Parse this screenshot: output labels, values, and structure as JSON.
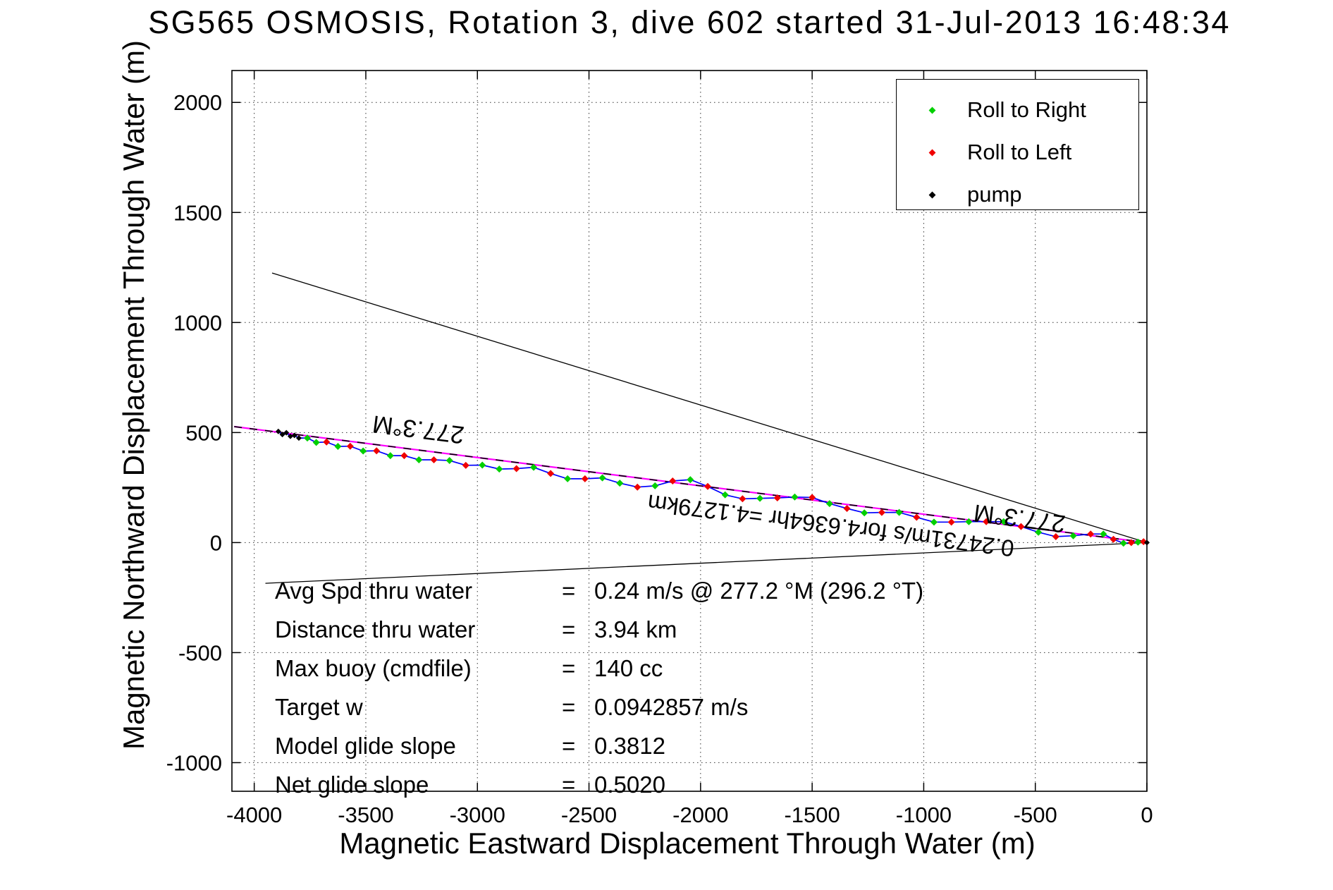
{
  "title": "SG565 OSMOSIS, Rotation 3, dive 602 started 31-Jul-2013 16:48:34",
  "legend": {
    "items": [
      {
        "label": "Roll to Right",
        "marker": "roll-right-marker",
        "color": "#00d000"
      },
      {
        "label": "Roll to Left",
        "marker": "roll-left-marker",
        "color": "#f00000"
      },
      {
        "label": "pump",
        "marker": "pump-marker",
        "color": "#000000"
      }
    ]
  },
  "stats": {
    "eq": "=",
    "rows": [
      {
        "label": "Avg Spd thru water",
        "value": "0.24 m/s @ 277.2 °M (296.2 °T)"
      },
      {
        "label": "Distance thru water",
        "value": "3.94 km"
      },
      {
        "label": "Max buoy (cmdfile)",
        "value": "140 cc"
      },
      {
        "label": "Target w",
        "value": "0.0942857 m/s"
      },
      {
        "label": "Model glide slope",
        "value": "0.3812"
      },
      {
        "label": "Net glide slope",
        "value": "0.5020"
      }
    ]
  },
  "chart_data": {
    "type": "line",
    "title": "SG565 OSMOSIS, Rotation 3, dive 602 started 31-Jul-2013 16:48:34",
    "xlabel": "Magnetic Eastward Displacement Through Water (m)",
    "ylabel": "Magnetic Northward Displacement Through Water (m)",
    "xlim": [
      -4100,
      0
    ],
    "ylim": [
      -1130,
      2145
    ],
    "x_ticks": [
      -4000,
      -3500,
      -3000,
      -2500,
      -2000,
      -1500,
      -1000,
      -500,
      0
    ],
    "y_ticks": [
      -1000,
      -500,
      0,
      500,
      1000,
      1500,
      2000
    ],
    "grid": true,
    "legend_position": "top-right",
    "marker_colors": {
      "g": "#00d000",
      "r": "#f00000",
      "k": "#000000"
    },
    "series": [
      {
        "name": "bearing-cone-upper",
        "color": "#000000",
        "style": "solid",
        "width": 1.3,
        "points": [
          [
            -3920,
            1225
          ],
          [
            0,
            0
          ]
        ]
      },
      {
        "name": "bearing-cone-lower",
        "color": "#000000",
        "style": "solid",
        "width": 1.3,
        "points": [
          [
            -3950,
            -185
          ],
          [
            0,
            0
          ]
        ]
      },
      {
        "name": "average-course-line",
        "color": "#ff00ff",
        "style": "solid",
        "width": 2.2,
        "points": [
          [
            -4090,
            527
          ],
          [
            0,
            0
          ]
        ]
      },
      {
        "name": "desired-course-line",
        "color": "#000000",
        "style": "dashed",
        "width": 1.6,
        "points": [
          [
            -4090,
            527
          ],
          [
            0,
            0
          ]
        ]
      },
      {
        "name": "track-through-water",
        "color": "#0000ff",
        "style": "solid",
        "width": 1.7,
        "points": [
          [
            -3892,
            505,
            "k"
          ],
          [
            -3874,
            491,
            "k"
          ],
          [
            -3856,
            499,
            "k"
          ],
          [
            -3838,
            483,
            "k"
          ],
          [
            -3820,
            487,
            "k"
          ],
          [
            -3800,
            475,
            "k"
          ],
          [
            -3762,
            475,
            "g"
          ],
          [
            -3722,
            455,
            "g"
          ],
          [
            -3676,
            457,
            "r"
          ],
          [
            -3625,
            437,
            "g"
          ],
          [
            -3570,
            438,
            "r"
          ],
          [
            -3512,
            416,
            "g"
          ],
          [
            -3452,
            417,
            "r"
          ],
          [
            -3390,
            395,
            "g"
          ],
          [
            -3328,
            395,
            "r"
          ],
          [
            -3262,
            376,
            "g"
          ],
          [
            -3195,
            376,
            "r"
          ],
          [
            -3125,
            373,
            "g"
          ],
          [
            -3052,
            351,
            "r"
          ],
          [
            -2978,
            352,
            "g"
          ],
          [
            -2902,
            334,
            "g"
          ],
          [
            -2825,
            336,
            "r"
          ],
          [
            -2748,
            342,
            "g"
          ],
          [
            -2672,
            314,
            "r"
          ],
          [
            -2596,
            290,
            "g"
          ],
          [
            -2518,
            290,
            "r"
          ],
          [
            -2440,
            294,
            "g"
          ],
          [
            -2362,
            270,
            "g"
          ],
          [
            -2283,
            252,
            "r"
          ],
          [
            -2204,
            258,
            "g"
          ],
          [
            -2125,
            280,
            "r"
          ],
          [
            -2046,
            286,
            "g"
          ],
          [
            -1968,
            255,
            "r"
          ],
          [
            -1890,
            217,
            "g"
          ],
          [
            -1812,
            199,
            "r"
          ],
          [
            -1734,
            201,
            "g"
          ],
          [
            -1656,
            203,
            "r"
          ],
          [
            -1578,
            207,
            "g"
          ],
          [
            -1500,
            205,
            "r"
          ],
          [
            -1422,
            177,
            "g"
          ],
          [
            -1344,
            155,
            "r"
          ],
          [
            -1266,
            135,
            "g"
          ],
          [
            -1188,
            137,
            "r"
          ],
          [
            -1110,
            137,
            "g"
          ],
          [
            -1032,
            115,
            "r"
          ],
          [
            -954,
            93,
            "g"
          ],
          [
            -876,
            93,
            "r"
          ],
          [
            -798,
            95,
            "g"
          ],
          [
            -720,
            95,
            "r"
          ],
          [
            -642,
            95,
            "g"
          ],
          [
            -564,
            73,
            "r"
          ],
          [
            -486,
            47,
            "g"
          ],
          [
            -408,
            27,
            "r"
          ],
          [
            -330,
            31,
            "g"
          ],
          [
            -252,
            39,
            "r"
          ],
          [
            -195,
            39,
            "g"
          ],
          [
            -150,
            15,
            "r"
          ],
          [
            -105,
            -3,
            "g"
          ],
          [
            -70,
            0,
            "r"
          ],
          [
            -40,
            2,
            "g"
          ],
          [
            -15,
            4,
            "r"
          ],
          [
            0,
            0,
            "k"
          ]
        ]
      }
    ],
    "annotations": [
      {
        "text": "277.3°M",
        "x": -3260,
        "y": 551,
        "rotation_deg": 187.2,
        "font_size": 35
      },
      {
        "text": "277.3°M",
        "x": -566,
        "y": 147,
        "rotation_deg": 187.2,
        "font_size": 35
      },
      {
        "text": "0.24731m/s for4.6364hr =4.1279km",
        "x": -1412,
        "y": 113,
        "rotation_deg": 187.2,
        "font_size": 33
      }
    ]
  }
}
